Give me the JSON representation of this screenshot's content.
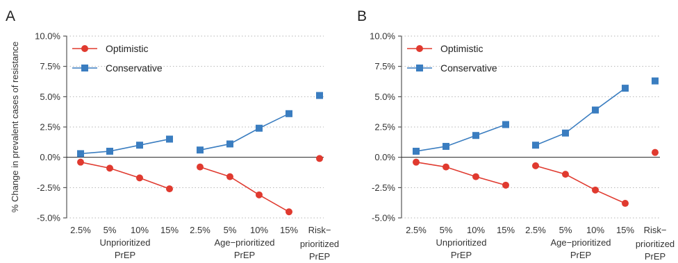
{
  "chart_data": [
    {
      "panel_label": "A",
      "type": "line",
      "ylabel": "% Change in prevalent cases of resistance",
      "ylim": [
        -5.0,
        10.0
      ],
      "yticks": [
        "10.0%",
        "7.5%",
        "5.0%",
        "2.5%",
        "0.0%",
        "-2.5%",
        "-5.0%"
      ],
      "ytick_values": [
        10.0,
        7.5,
        5.0,
        2.5,
        0.0,
        -2.5,
        -5.0
      ],
      "grid": "horizontal dotted",
      "legend_position": "top-left",
      "x_ticks": [
        "2.5%",
        "5%",
        "10%",
        "15%",
        "2.5%",
        "5%",
        "10%",
        "15%",
        "Risk−"
      ],
      "groups": [
        {
          "label_lines": [
            "Unprioritized",
            "PrEP"
          ]
        },
        {
          "label_lines": [
            "Age−prioritized",
            "PrEP"
          ]
        },
        {
          "label_lines": [
            "prioritized",
            "PrEP"
          ]
        }
      ],
      "series": [
        {
          "name": "Optimistic",
          "color": "#e03a2f",
          "marker": "circle",
          "groups": [
            [
              -0.4,
              -0.9,
              -1.7,
              -2.6
            ],
            [
              -0.8,
              -1.6,
              -3.1,
              -4.5
            ],
            [
              -0.1
            ]
          ]
        },
        {
          "name": "Conservative",
          "color": "#3a7dc0",
          "marker": "square",
          "groups": [
            [
              0.3,
              0.5,
              1.0,
              1.5
            ],
            [
              0.6,
              1.1,
              2.4,
              3.6
            ],
            [
              5.1
            ]
          ]
        }
      ]
    },
    {
      "panel_label": "B",
      "type": "line",
      "ylabel": "",
      "ylim": [
        -5.0,
        10.0
      ],
      "yticks": [
        "10.0%",
        "7.5%",
        "5.0%",
        "2.5%",
        "0.0%",
        "-2.5%",
        "-5.0%"
      ],
      "ytick_values": [
        10.0,
        7.5,
        5.0,
        2.5,
        0.0,
        -2.5,
        -5.0
      ],
      "grid": "horizontal dotted",
      "legend_position": "top-left",
      "x_ticks": [
        "2.5%",
        "5%",
        "10%",
        "15%",
        "2.5%",
        "5%",
        "10%",
        "15%",
        "Risk−"
      ],
      "groups": [
        {
          "label_lines": [
            "Unprioritized",
            "PrEP"
          ]
        },
        {
          "label_lines": [
            "Age−prioritized",
            "PrEP"
          ]
        },
        {
          "label_lines": [
            "prioritized",
            "PrEP"
          ]
        }
      ],
      "series": [
        {
          "name": "Optimistic",
          "color": "#e03a2f",
          "marker": "circle",
          "groups": [
            [
              -0.4,
              -0.8,
              -1.6,
              -2.3
            ],
            [
              -0.7,
              -1.4,
              -2.7,
              -3.8
            ],
            [
              0.4
            ]
          ]
        },
        {
          "name": "Conservative",
          "color": "#3a7dc0",
          "marker": "square",
          "groups": [
            [
              0.5,
              0.9,
              1.8,
              2.7
            ],
            [
              1.0,
              2.0,
              3.9,
              5.7
            ],
            [
              6.3
            ]
          ]
        }
      ]
    }
  ]
}
